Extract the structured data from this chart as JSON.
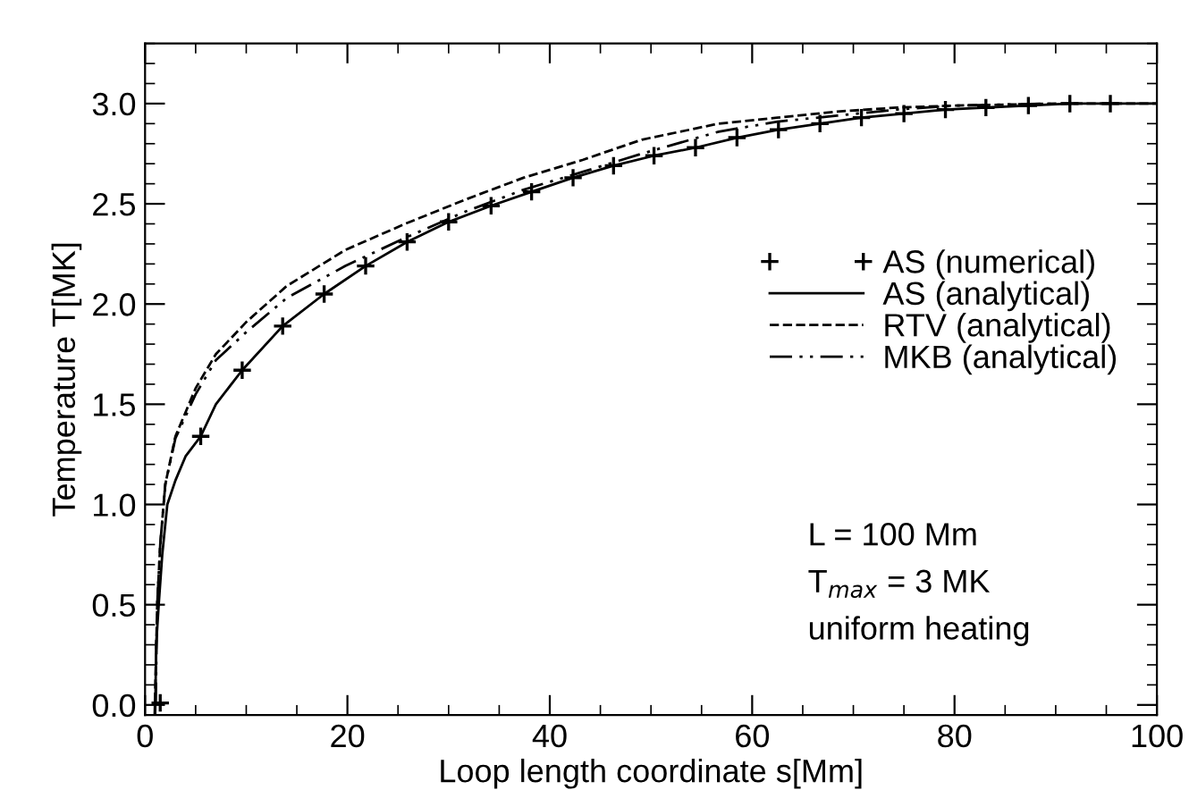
{
  "chart_data": {
    "type": "line",
    "xlabel": "Loop length coordinate s[Mm]",
    "ylabel": "Temperature T[MK]",
    "xlim": [
      0,
      100
    ],
    "ylim": [
      -0.05,
      3.3
    ],
    "xticks": [
      0,
      20,
      40,
      60,
      80,
      100
    ],
    "yticks": [
      {
        "value": 0,
        "label": "0.0"
      },
      0.5,
      {
        "value": 1,
        "label": "1.0"
      },
      1.5,
      {
        "value": 2,
        "label": "2.0"
      },
      2.5,
      {
        "value": 3,
        "label": "3.0"
      }
    ],
    "grid": false,
    "legend": "right",
    "annotations": [
      "L = 100 Mm",
      "T$_{max}$ = 3 MK",
      "uniform heating"
    ],
    "series": [
      {
        "name": "AS (numerical)",
        "type": "scatter",
        "marker": "cross",
        "color": "#000000",
        "x": [
          1.5,
          5.5,
          9.6,
          13.6,
          17.7,
          21.8,
          25.9,
          30,
          34.2,
          38.2,
          42.3,
          46.3,
          50.3,
          54.4,
          58.5,
          62.6,
          66.7,
          70.8,
          75,
          79.1,
          83.1,
          87.3,
          91.4,
          95.4
        ],
        "values": [
          0.01,
          1.34,
          1.67,
          1.89,
          2.05,
          2.19,
          2.31,
          2.41,
          2.49,
          2.56,
          2.63,
          2.69,
          2.74,
          2.78,
          2.83,
          2.87,
          2.9,
          2.93,
          2.95,
          2.97,
          2.98,
          2.99,
          3.0,
          3.0
        ]
      },
      {
        "name": "AS (analytical)",
        "line_style": "solid",
        "color": "#000000",
        "x": [
          1,
          1.1,
          1.35,
          1.7,
          2.2,
          3,
          4,
          5.5,
          7,
          9.6,
          13.6,
          17.7,
          21.8,
          25.9,
          30,
          34.2,
          38.2,
          42.3,
          46.3,
          50.3,
          54.4,
          58.5,
          62.6,
          66.7,
          70.8,
          75,
          79.1,
          83.1,
          87.3,
          91.4,
          95.4,
          100
        ],
        "values": [
          -0.05,
          0.3,
          0.5,
          0.75,
          1.0,
          1.12,
          1.24,
          1.34,
          1.5,
          1.67,
          1.89,
          2.05,
          2.19,
          2.31,
          2.41,
          2.49,
          2.56,
          2.63,
          2.69,
          2.74,
          2.78,
          2.83,
          2.87,
          2.9,
          2.93,
          2.95,
          2.97,
          2.98,
          2.99,
          3.0,
          3.0,
          3.0
        ]
      },
      {
        "name": "RTV (analytical)",
        "line_style": "dashed",
        "color": "#000000",
        "x": [
          0.95,
          1.2,
          1.5,
          2,
          3,
          5,
          7,
          10,
          14,
          19.8,
          25.7,
          31.6,
          37.4,
          43.3,
          49.1,
          56.7,
          62.5,
          68.4,
          74.3,
          80.1,
          90,
          100
        ],
        "values": [
          -0.05,
          0.5,
          0.8,
          1.1,
          1.34,
          1.58,
          1.75,
          1.91,
          2.09,
          2.27,
          2.4,
          2.52,
          2.63,
          2.72,
          2.82,
          2.9,
          2.93,
          2.96,
          2.98,
          2.99,
          3.0,
          3.0
        ]
      },
      {
        "name": "MKB (analytical)",
        "line_style": "dashdotdot",
        "color": "#000000",
        "x": [
          1.05,
          1.2,
          1.5,
          2,
          3,
          5,
          7,
          10,
          14,
          19.8,
          25.7,
          31.6,
          37.4,
          43.3,
          49.1,
          56.7,
          62.5,
          68.4,
          74.3,
          80.1,
          90
        ],
        "values": [
          0.0,
          0.5,
          0.8,
          1.1,
          1.33,
          1.55,
          1.72,
          1.86,
          2.03,
          2.19,
          2.33,
          2.46,
          2.57,
          2.66,
          2.75,
          2.86,
          2.91,
          2.94,
          2.97,
          2.99,
          3.0
        ]
      }
    ]
  }
}
